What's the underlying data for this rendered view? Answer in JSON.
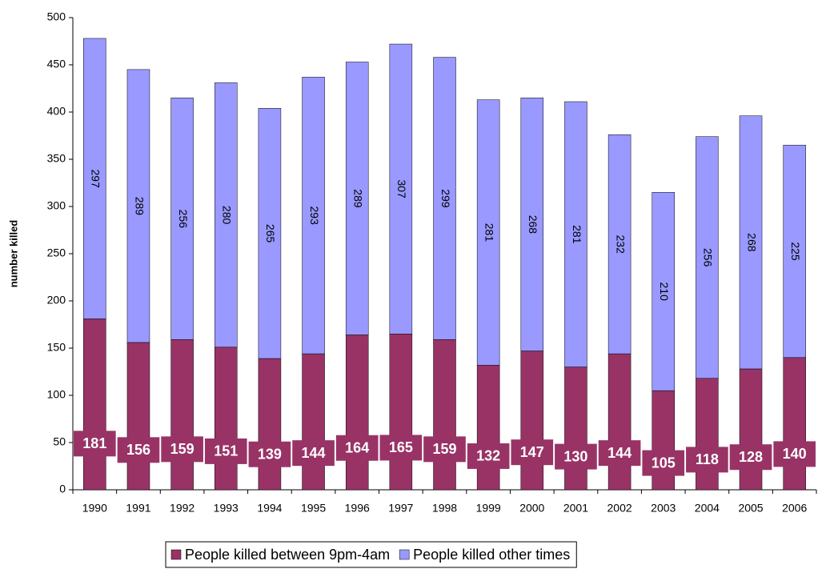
{
  "chart_data": {
    "type": "stacked_bar",
    "y_label": "number killed",
    "categories": [
      "1990",
      "1991",
      "1992",
      "1993",
      "1994",
      "1995",
      "1996",
      "1997",
      "1998",
      "1999",
      "2000",
      "2001",
      "2002",
      "2003",
      "2004",
      "2005",
      "2006"
    ],
    "series": [
      {
        "name": "People killed between 9pm-4am",
        "color": "#993366",
        "values": [
          181,
          156,
          159,
          151,
          139,
          144,
          164,
          165,
          159,
          132,
          147,
          130,
          144,
          105,
          118,
          128,
          140
        ]
      },
      {
        "name": "People killed other times",
        "color": "#9999ff",
        "values": [
          297,
          289,
          256,
          280,
          265,
          293,
          289,
          307,
          299,
          281,
          268,
          281,
          232,
          210,
          256,
          268,
          225
        ]
      }
    ],
    "ylim": [
      0,
      500
    ],
    "yticks": [
      0,
      50,
      100,
      150,
      200,
      250,
      300,
      350,
      400,
      450,
      500
    ],
    "legend": "bottom"
  }
}
